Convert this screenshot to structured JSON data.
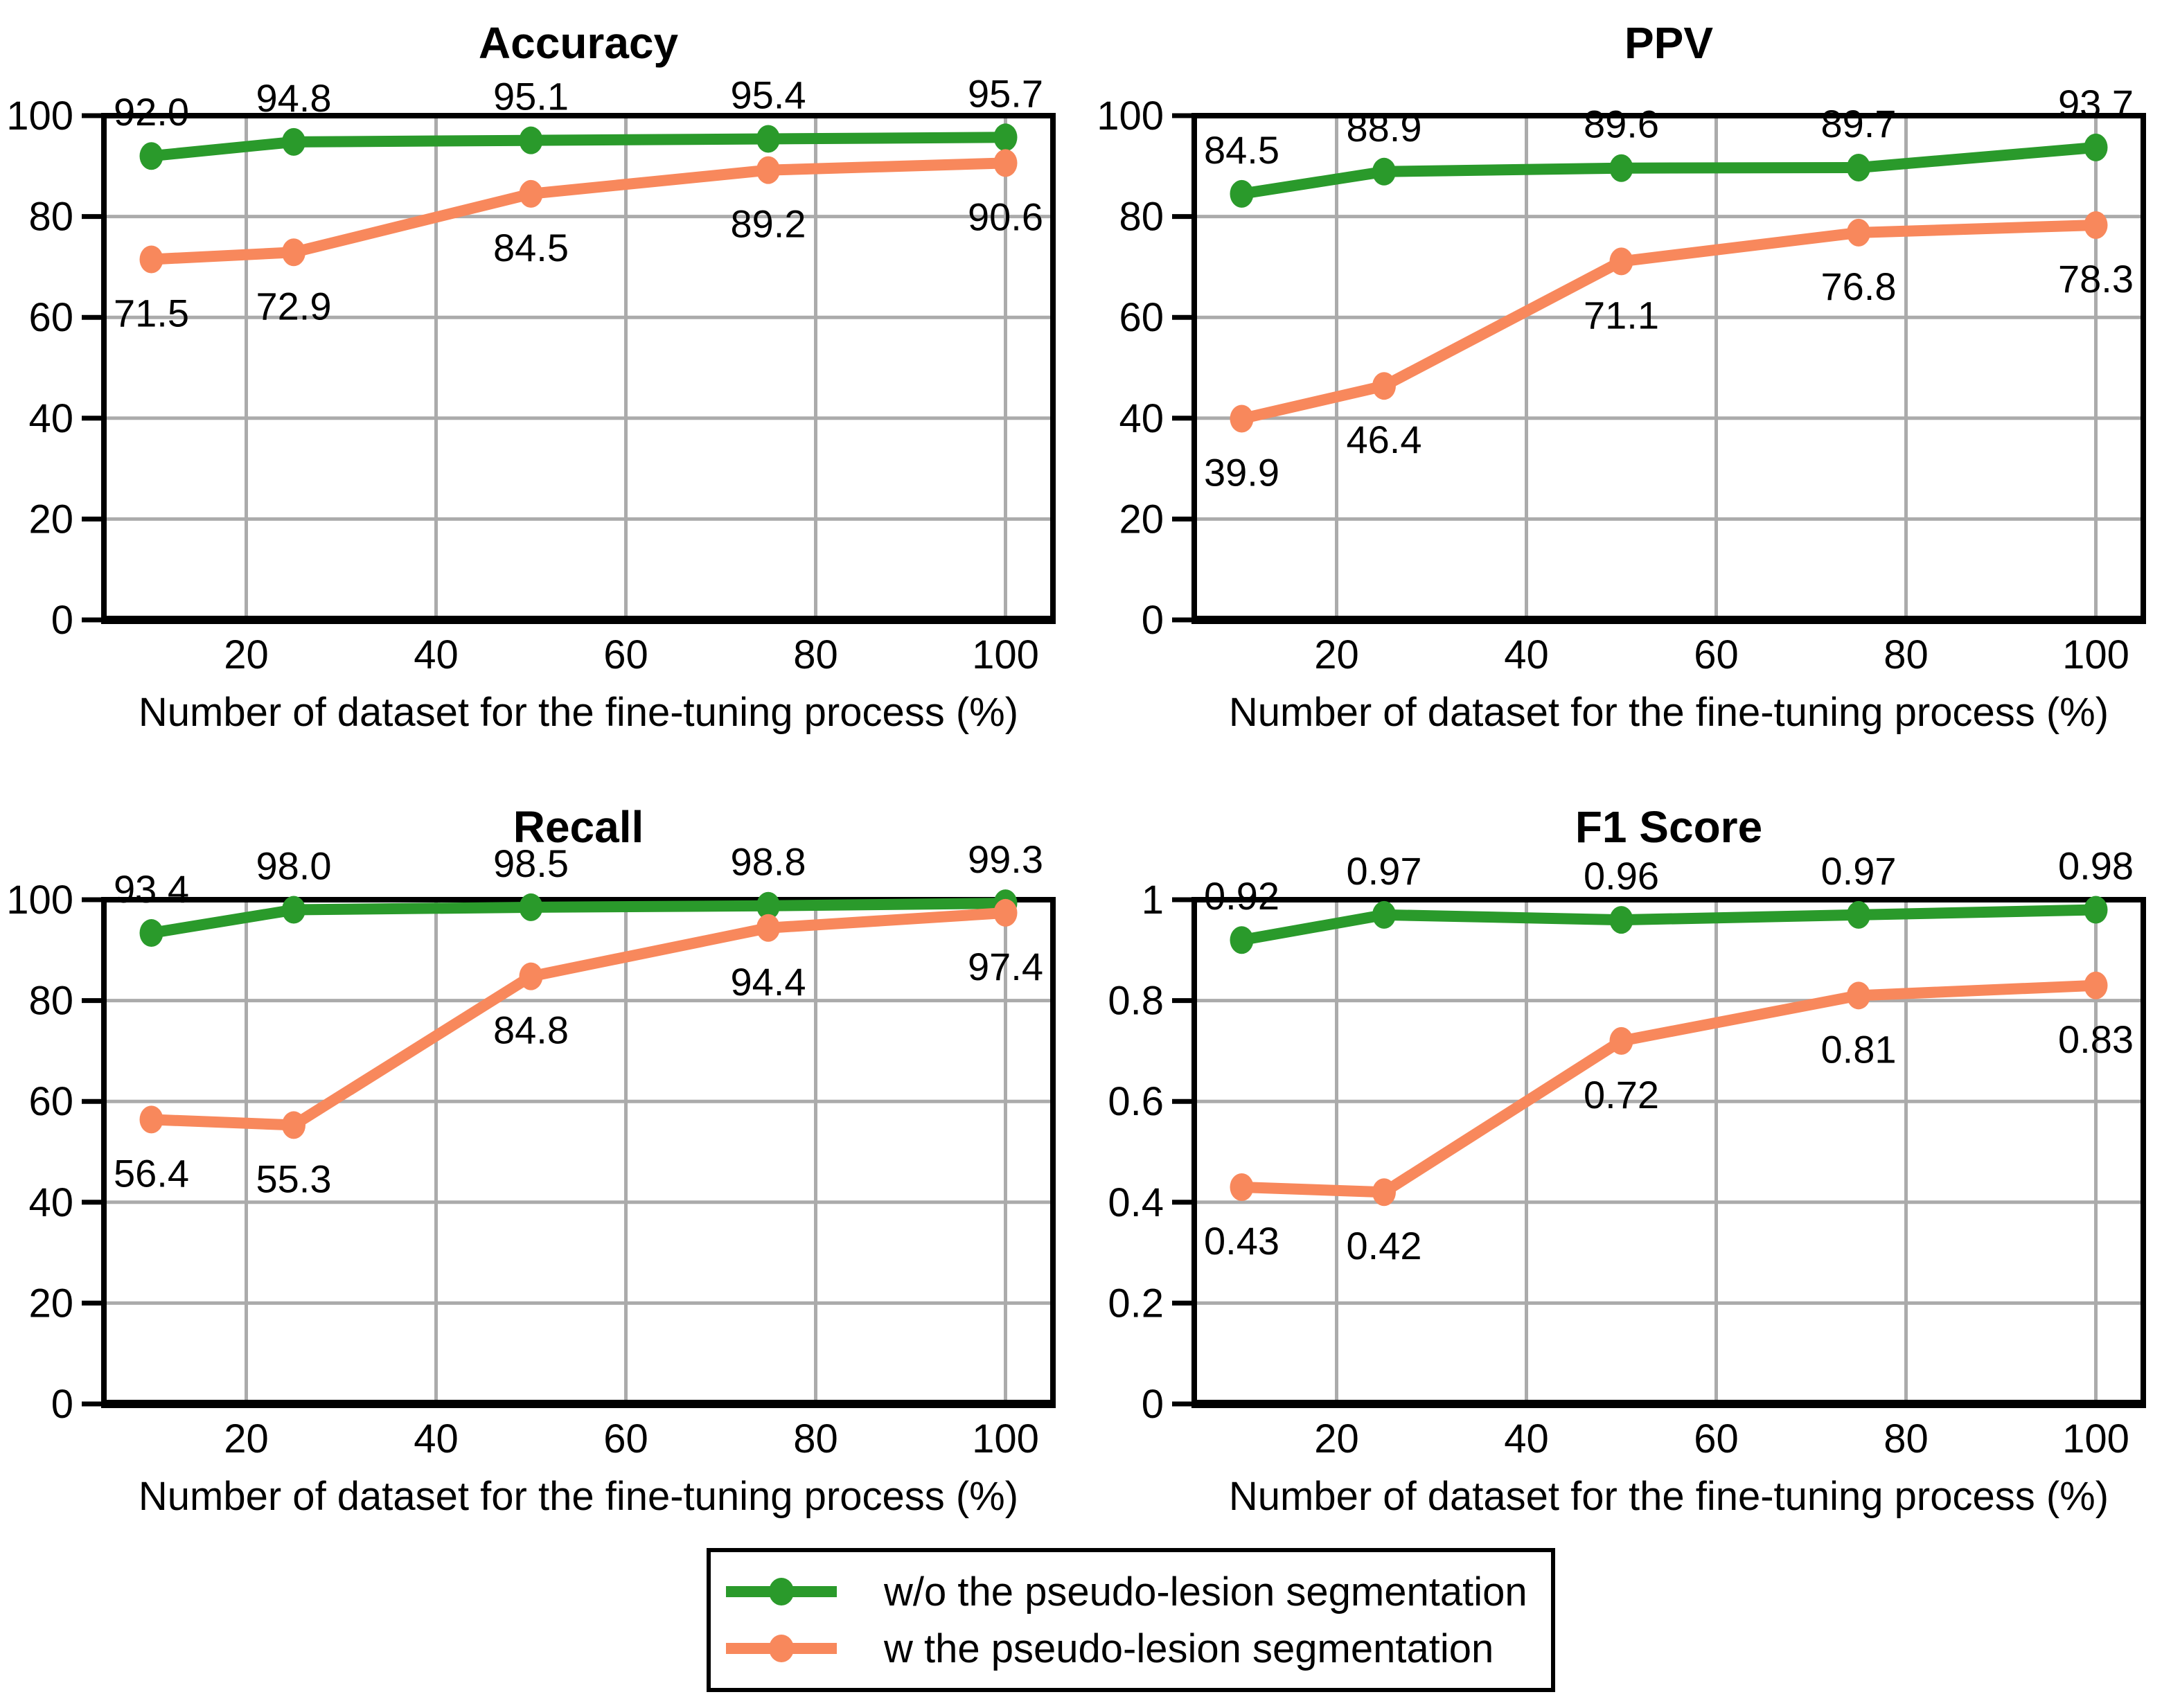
{
  "figure": {
    "background": "#ffffff",
    "x_axis_label": "Number of dataset for the fine-tuning process (%)"
  },
  "colors": {
    "series_green": "#2a9a2b",
    "series_orange": "#f8885c",
    "grid": "#ababab",
    "axis": "#000000"
  },
  "legend": {
    "position": "bottom-center",
    "items": [
      {
        "label": "w/o the pseudo-lesion segmentation",
        "color": "#2a9a2b",
        "marker": "circle-icon"
      },
      {
        "label": "w the pseudo-lesion segmentation",
        "color": "#f8885c",
        "marker": "circle-icon"
      }
    ]
  },
  "chart_data": [
    {
      "type": "line",
      "title": "Accuracy",
      "xlabel": "Number of dataset for the fine-tuning process (%)",
      "x": [
        10,
        25,
        50,
        75,
        100
      ],
      "xlim": [
        5,
        105
      ],
      "ylim": [
        0,
        100
      ],
      "xticks": [
        20,
        40,
        60,
        80,
        100
      ],
      "xtick_labels": [
        "20",
        "40",
        "60",
        "80",
        "100"
      ],
      "yticks": [
        0,
        20,
        40,
        60,
        80,
        100
      ],
      "ytick_labels": [
        "0",
        "20",
        "40",
        "60",
        "80",
        "100"
      ],
      "grid": true,
      "series": [
        {
          "name": "w/o the pseudo-lesion segmentation",
          "color": "#2a9a2b",
          "values": [
            92.0,
            94.8,
            95.1,
            95.4,
            95.7
          ],
          "point_labels": [
            "92.0",
            "94.8",
            "95.1",
            "95.4",
            "95.7"
          ],
          "label_side": "above"
        },
        {
          "name": "w the pseudo-lesion segmentation",
          "color": "#f8885c",
          "values": [
            71.5,
            72.9,
            84.5,
            89.2,
            90.6
          ],
          "point_labels": [
            "71.5",
            "72.9",
            "84.5",
            "89.2",
            "90.6"
          ],
          "label_side": "below"
        }
      ]
    },
    {
      "type": "line",
      "title": "PPV",
      "xlabel": "Number of dataset for the fine-tuning process (%)",
      "x": [
        10,
        25,
        50,
        75,
        100
      ],
      "xlim": [
        5,
        105
      ],
      "ylim": [
        0,
        100
      ],
      "xticks": [
        20,
        40,
        60,
        80,
        100
      ],
      "xtick_labels": [
        "20",
        "40",
        "60",
        "80",
        "100"
      ],
      "yticks": [
        0,
        20,
        40,
        60,
        80,
        100
      ],
      "ytick_labels": [
        "0",
        "20",
        "40",
        "60",
        "80",
        "100"
      ],
      "grid": true,
      "series": [
        {
          "name": "w/o the pseudo-lesion segmentation",
          "color": "#2a9a2b",
          "values": [
            84.5,
            88.9,
            89.6,
            89.7,
            93.7
          ],
          "point_labels": [
            "84.5",
            "88.9",
            "89.6",
            "89.7",
            "93.7"
          ],
          "label_side": "above"
        },
        {
          "name": "w the pseudo-lesion segmentation",
          "color": "#f8885c",
          "values": [
            39.9,
            46.4,
            71.1,
            76.8,
            78.3
          ],
          "point_labels": [
            "39.9",
            "46.4",
            "71.1",
            "76.8",
            "78.3"
          ],
          "label_side": "below"
        }
      ]
    },
    {
      "type": "line",
      "title": "Recall",
      "xlabel": "Number of dataset for the fine-tuning process (%)",
      "x": [
        10,
        25,
        50,
        75,
        100
      ],
      "xlim": [
        5,
        105
      ],
      "ylim": [
        0,
        100
      ],
      "xticks": [
        20,
        40,
        60,
        80,
        100
      ],
      "xtick_labels": [
        "20",
        "40",
        "60",
        "80",
        "100"
      ],
      "yticks": [
        0,
        20,
        40,
        60,
        80,
        100
      ],
      "ytick_labels": [
        "0",
        "20",
        "40",
        "60",
        "80",
        "100"
      ],
      "grid": true,
      "series": [
        {
          "name": "w/o the pseudo-lesion segmentation",
          "color": "#2a9a2b",
          "values": [
            93.4,
            98.0,
            98.5,
            98.8,
            99.3
          ],
          "point_labels": [
            "93.4",
            "98.0",
            "98.5",
            "98.8",
            "99.3"
          ],
          "label_side": "above"
        },
        {
          "name": "w the pseudo-lesion segmentation",
          "color": "#f8885c",
          "values": [
            56.4,
            55.3,
            84.8,
            94.4,
            97.4
          ],
          "point_labels": [
            "56.4",
            "55.3",
            "84.8",
            "94.4",
            "97.4"
          ],
          "label_side": "below"
        }
      ]
    },
    {
      "type": "line",
      "title": "F1 Score",
      "xlabel": "Number of dataset for the fine-tuning process (%)",
      "x": [
        10,
        25,
        50,
        75,
        100
      ],
      "xlim": [
        5,
        105
      ],
      "ylim": [
        0,
        1
      ],
      "xticks": [
        20,
        40,
        60,
        80,
        100
      ],
      "xtick_labels": [
        "20",
        "40",
        "60",
        "80",
        "100"
      ],
      "yticks": [
        0,
        0.2,
        0.4,
        0.6,
        0.8,
        1
      ],
      "ytick_labels": [
        "0",
        "0.2",
        "0.4",
        "0.6",
        "0.8",
        "1"
      ],
      "grid": true,
      "series": [
        {
          "name": "w/o the pseudo-lesion segmentation",
          "color": "#2a9a2b",
          "values": [
            0.92,
            0.97,
            0.96,
            0.97,
            0.98
          ],
          "point_labels": [
            "0.92",
            "0.97",
            "0.96",
            "0.97",
            "0.98"
          ],
          "label_side": "above"
        },
        {
          "name": "w the pseudo-lesion segmentation",
          "color": "#f8885c",
          "values": [
            0.43,
            0.42,
            0.72,
            0.81,
            0.83
          ],
          "point_labels": [
            "0.43",
            "0.42",
            "0.72",
            "0.81",
            "0.83"
          ],
          "label_side": "below"
        }
      ]
    }
  ]
}
